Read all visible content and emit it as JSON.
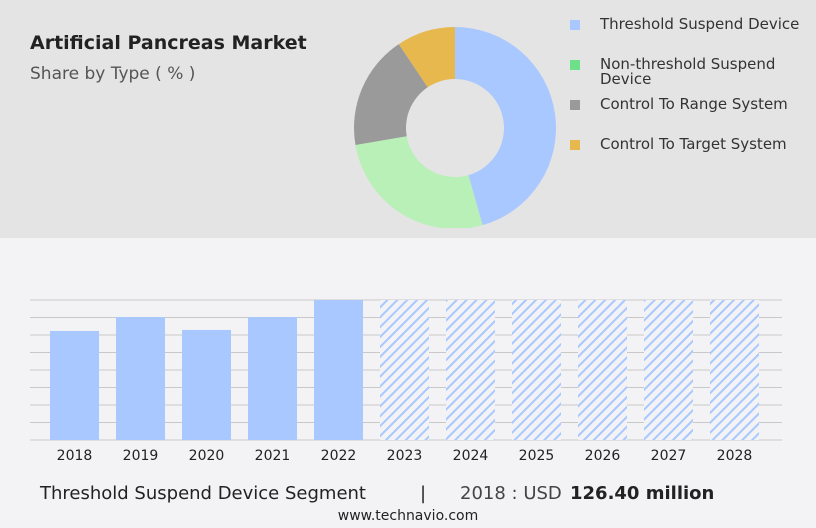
{
  "title": "Artificial Pancreas Market",
  "subtitle": "Share by Type ( % )",
  "footer": {
    "segment": "Threshold Suspend Device Segment",
    "separator": "|",
    "year_label": "2018 : USD",
    "value": "126.40 million",
    "url": "www.technavio.com"
  },
  "chart_data": [
    {
      "type": "pie",
      "donut": true,
      "categories": [
        "Threshold Suspend Device",
        "Non-threshold Suspend Device",
        "Control To Range System",
        "Control To Target System"
      ],
      "values": [
        45.6,
        26.7,
        18.3,
        9.4
      ],
      "colors": [
        "#a8c8ff",
        "#b8f0b8",
        "#9a9a9a",
        "#e6b84e"
      ],
      "legend_colors": [
        "#a8c8ff",
        "#6ee08a",
        "#9a9a9a",
        "#e6b84e"
      ],
      "legend": "right"
    },
    {
      "type": "bar",
      "categories": [
        "2018",
        "2019",
        "2020",
        "2021",
        "2022",
        "2023",
        "2024",
        "2025",
        "2026",
        "2027",
        "2028"
      ],
      "values": [
        126.4,
        142.6,
        127.6,
        142.6,
        162.3,
        null,
        null,
        null,
        null,
        null,
        null
      ],
      "forecast_hatched": [
        "2023",
        "2024",
        "2025",
        "2026",
        "2027",
        "2028"
      ],
      "color": "#a8c8ff",
      "grid": true,
      "ylim": [
        0,
        162.3
      ]
    }
  ]
}
